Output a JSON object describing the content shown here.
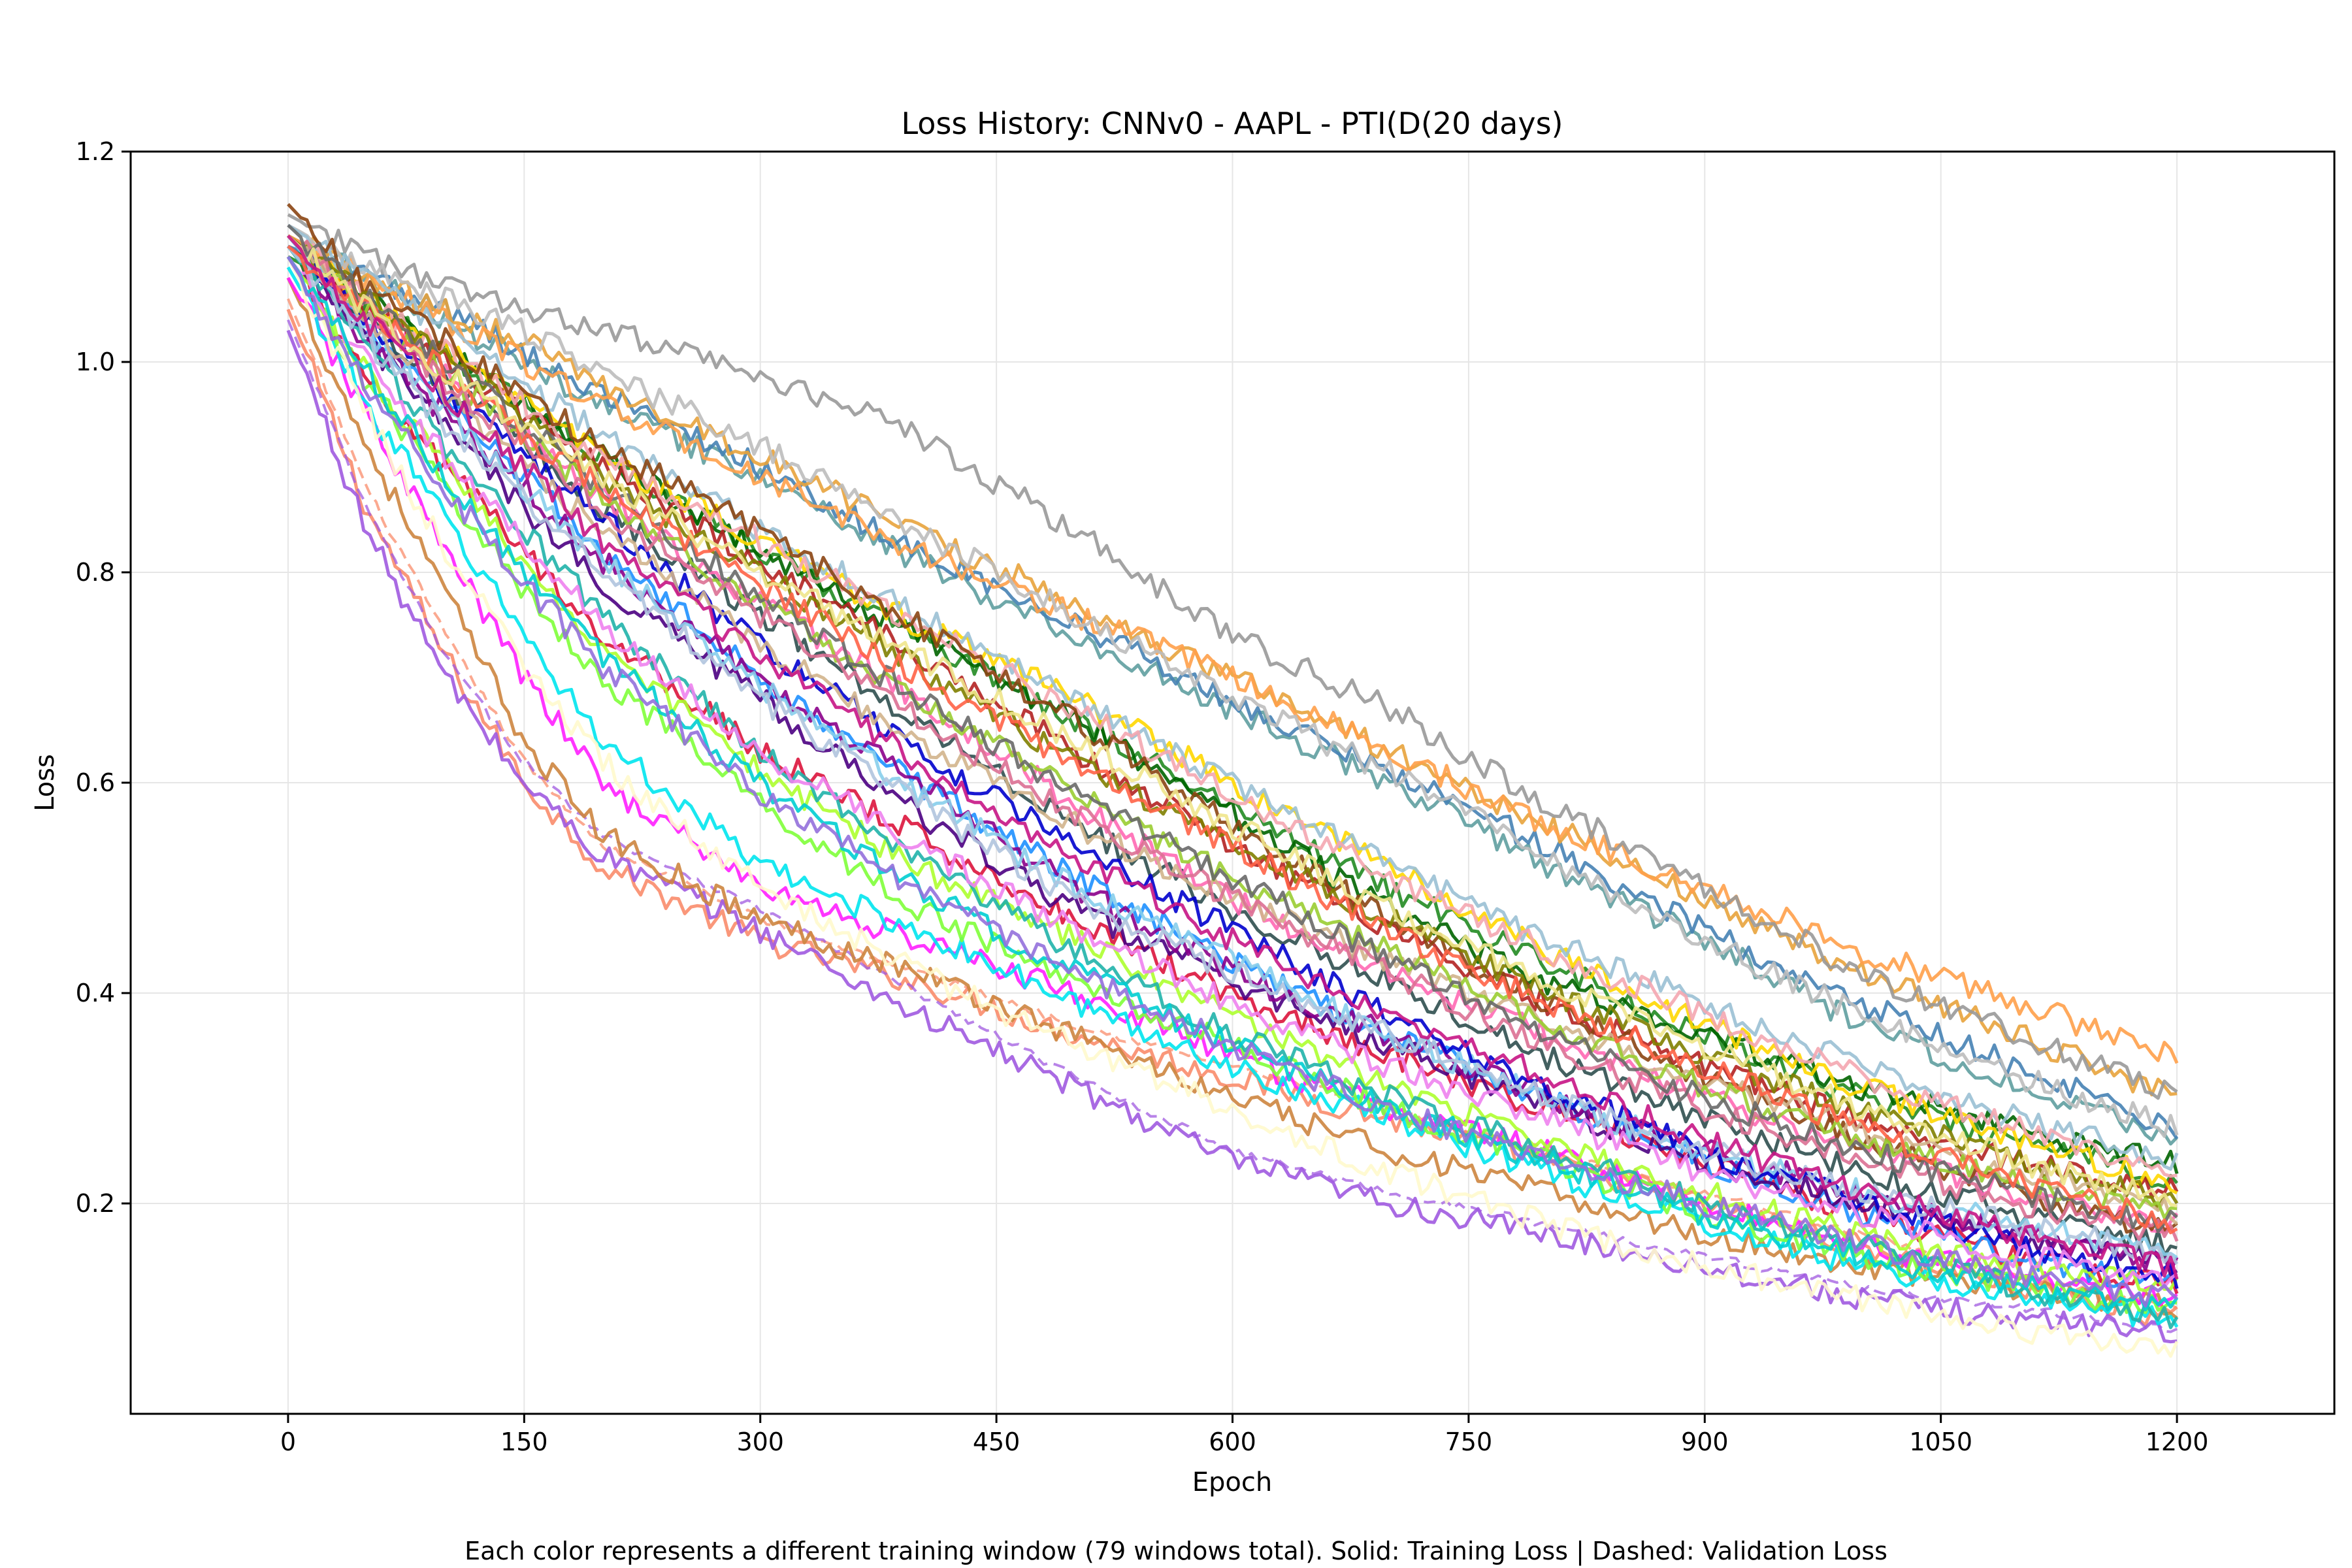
{
  "chart_data": {
    "type": "line",
    "title": "Loss History: CNNv0 - AAPL - PTI(D(20 days)",
    "xlabel": "Epoch",
    "ylabel": "Loss",
    "caption": "Each color represents a different training window (79 windows total). Solid: Training Loss | Dashed: Validation Loss",
    "xlim": [
      -100,
      1300
    ],
    "ylim": [
      0.0,
      1.2
    ],
    "xticks": [
      0,
      150,
      300,
      450,
      600,
      750,
      900,
      1050,
      1200
    ],
    "yticks": [
      0.2,
      0.4,
      0.6,
      0.8,
      1.0,
      1.2
    ],
    "xtick_labels": [
      "0",
      "150",
      "300",
      "450",
      "600",
      "750",
      "900",
      "1050",
      "1200"
    ],
    "ytick_labels": [
      "0.2",
      "0.4",
      "0.6",
      "0.8",
      "1.0",
      "1.2"
    ],
    "grid": true,
    "num_windows": 79,
    "x": [
      0,
      50,
      100,
      150,
      200,
      300,
      400,
      500,
      600,
      700,
      800,
      900,
      1000,
      1100,
      1200
    ],
    "series": [
      {
        "style": "solid",
        "color": "#fa8c6b",
        "values": [
          1.05,
          0.86,
          0.72,
          0.6,
          0.52,
          0.45,
          0.41,
          0.36,
          0.32,
          0.28,
          0.24,
          0.2,
          0.16,
          0.12,
          0.09
        ]
      },
      {
        "style": "dashed",
        "color": "#fa8c6b",
        "values": [
          1.06,
          0.88,
          0.74,
          0.62,
          0.54,
          0.47,
          0.42,
          0.37,
          0.33,
          0.29,
          0.25,
          0.21,
          0.17,
          0.13,
          0.1
        ]
      },
      {
        "style": "solid",
        "color": "#a05ae0",
        "values": [
          1.03,
          0.84,
          0.7,
          0.6,
          0.53,
          0.46,
          0.38,
          0.31,
          0.24,
          0.2,
          0.17,
          0.14,
          0.11,
          0.09,
          0.08
        ]
      },
      {
        "style": "dashed",
        "color": "#a05ae0",
        "values": [
          1.04,
          0.86,
          0.72,
          0.62,
          0.55,
          0.48,
          0.4,
          0.32,
          0.25,
          0.21,
          0.18,
          0.15,
          0.12,
          0.1,
          0.08
        ]
      },
      {
        "style": "solid",
        "color": "#cd853f",
        "values": [
          1.08,
          0.92,
          0.78,
          0.64,
          0.55,
          0.47,
          0.42,
          0.36,
          0.3,
          0.25,
          0.21,
          0.17,
          0.14,
          0.12,
          0.1
        ]
      },
      {
        "style": "solid",
        "color": "#ff1fff",
        "values": [
          1.08,
          0.95,
          0.82,
          0.7,
          0.6,
          0.5,
          0.45,
          0.4,
          0.34,
          0.29,
          0.25,
          0.2,
          0.16,
          0.13,
          0.11
        ]
      },
      {
        "style": "solid",
        "color": "#00e5ee",
        "values": [
          1.09,
          0.96,
          0.85,
          0.74,
          0.64,
          0.52,
          0.46,
          0.39,
          0.33,
          0.28,
          0.23,
          0.18,
          0.14,
          0.11,
          0.09
        ]
      },
      {
        "style": "solid",
        "color": "#7fff3a",
        "values": [
          1.1,
          0.98,
          0.88,
          0.78,
          0.7,
          0.58,
          0.48,
          0.41,
          0.35,
          0.29,
          0.24,
          0.19,
          0.15,
          0.12,
          0.1
        ]
      },
      {
        "style": "solid",
        "color": "#dc143c",
        "values": [
          1.1,
          0.98,
          0.9,
          0.82,
          0.74,
          0.63,
          0.55,
          0.47,
          0.4,
          0.34,
          0.29,
          0.24,
          0.19,
          0.15,
          0.12
        ]
      },
      {
        "style": "solid",
        "color": "#1e90ff",
        "values": [
          1.12,
          1.03,
          0.96,
          0.89,
          0.82,
          0.7,
          0.6,
          0.51,
          0.43,
          0.36,
          0.3,
          0.24,
          0.19,
          0.15,
          0.12
        ]
      },
      {
        "style": "solid",
        "color": "#4b0082",
        "values": [
          1.11,
          1.02,
          0.94,
          0.86,
          0.79,
          0.68,
          0.57,
          0.48,
          0.41,
          0.35,
          0.29,
          0.24,
          0.2,
          0.17,
          0.14
        ]
      },
      {
        "style": "solid",
        "color": "#8b008b",
        "values": [
          1.11,
          1.02,
          0.95,
          0.88,
          0.81,
          0.7,
          0.6,
          0.5,
          0.42,
          0.36,
          0.3,
          0.25,
          0.21,
          0.17,
          0.14
        ]
      },
      {
        "style": "solid",
        "color": "#2f4f4f",
        "values": [
          1.12,
          1.04,
          0.98,
          0.92,
          0.86,
          0.76,
          0.66,
          0.56,
          0.48,
          0.41,
          0.34,
          0.28,
          0.23,
          0.19,
          0.16
        ]
      },
      {
        "style": "solid",
        "color": "#ff69b4",
        "values": [
          1.12,
          1.05,
          0.99,
          0.93,
          0.87,
          0.77,
          0.68,
          0.58,
          0.49,
          0.42,
          0.36,
          0.3,
          0.25,
          0.21,
          0.18
        ]
      },
      {
        "style": "solid",
        "color": "#228b22",
        "values": [
          1.1,
          1.06,
          1.01,
          0.96,
          0.91,
          0.82,
          0.74,
          0.66,
          0.58,
          0.5,
          0.43,
          0.36,
          0.3,
          0.26,
          0.22
        ]
      },
      {
        "style": "solid",
        "color": "#006400",
        "values": [
          1.11,
          1.06,
          1.01,
          0.96,
          0.91,
          0.82,
          0.74,
          0.66,
          0.57,
          0.48,
          0.41,
          0.36,
          0.31,
          0.27,
          0.24
        ]
      },
      {
        "style": "solid",
        "color": "#b22222",
        "values": [
          1.11,
          1.05,
          1.0,
          0.95,
          0.9,
          0.81,
          0.72,
          0.63,
          0.54,
          0.46,
          0.39,
          0.33,
          0.28,
          0.24,
          0.21
        ]
      },
      {
        "style": "solid",
        "color": "#ffd700",
        "values": [
          1.12,
          1.06,
          1.01,
          0.96,
          0.91,
          0.83,
          0.75,
          0.68,
          0.6,
          0.52,
          0.44,
          0.37,
          0.31,
          0.26,
          0.22
        ]
      },
      {
        "style": "solid",
        "color": "#5f9ea0",
        "values": [
          1.12,
          1.08,
          1.04,
          1.0,
          0.96,
          0.89,
          0.81,
          0.74,
          0.67,
          0.6,
          0.52,
          0.45,
          0.37,
          0.31,
          0.26
        ]
      },
      {
        "style": "solid",
        "color": "#4682b4",
        "values": [
          1.11,
          1.08,
          1.05,
          1.01,
          0.97,
          0.9,
          0.82,
          0.75,
          0.68,
          0.61,
          0.54,
          0.46,
          0.39,
          0.33,
          0.27
        ]
      },
      {
        "style": "solid",
        "color": "#e8a33c",
        "values": [
          1.12,
          1.08,
          1.05,
          1.02,
          0.98,
          0.91,
          0.84,
          0.77,
          0.7,
          0.63,
          0.56,
          0.49,
          0.42,
          0.36,
          0.3
        ]
      },
      {
        "style": "solid",
        "color": "#ffa04a",
        "values": [
          1.12,
          1.08,
          1.04,
          1.0,
          0.96,
          0.89,
          0.82,
          0.76,
          0.7,
          0.63,
          0.56,
          0.5,
          0.44,
          0.39,
          0.34
        ]
      },
      {
        "style": "solid",
        "color": "#999999",
        "values": [
          1.14,
          1.1,
          1.07,
          1.05,
          1.03,
          0.99,
          0.93,
          0.84,
          0.74,
          0.67,
          0.58,
          0.5,
          0.42,
          0.36,
          0.3
        ]
      },
      {
        "style": "solid",
        "color": "#bdbdbd",
        "values": [
          1.13,
          1.09,
          1.06,
          1.03,
          0.99,
          0.92,
          0.84,
          0.76,
          0.68,
          0.61,
          0.53,
          0.45,
          0.38,
          0.32,
          0.27
        ]
      },
      {
        "style": "solid",
        "color": "#9ac0d4",
        "values": [
          1.13,
          1.08,
          1.03,
          0.98,
          0.93,
          0.84,
          0.76,
          0.68,
          0.6,
          0.52,
          0.45,
          0.39,
          0.33,
          0.28,
          0.24
        ]
      },
      {
        "style": "solid",
        "color": "#f4a6b0",
        "values": [
          1.12,
          1.06,
          1.01,
          0.96,
          0.91,
          0.83,
          0.75,
          0.67,
          0.59,
          0.51,
          0.44,
          0.38,
          0.32,
          0.27,
          0.23
        ]
      },
      {
        "style": "solid",
        "color": "#adff2f",
        "values": [
          1.1,
          0.99,
          0.9,
          0.81,
          0.73,
          0.61,
          0.52,
          0.45,
          0.38,
          0.31,
          0.26,
          0.21,
          0.17,
          0.14,
          0.12
        ]
      },
      {
        "style": "solid",
        "color": "#87ceeb",
        "values": [
          1.12,
          1.03,
          0.95,
          0.88,
          0.81,
          0.69,
          0.59,
          0.5,
          0.43,
          0.36,
          0.3,
          0.25,
          0.21,
          0.18,
          0.15
        ]
      },
      {
        "style": "solid",
        "color": "#8b4513",
        "values": [
          1.15,
          1.07,
          1.02,
          0.97,
          0.92,
          0.84,
          0.75,
          0.66,
          0.56,
          0.47,
          0.39,
          0.32,
          0.26,
          0.21,
          0.17
        ]
      },
      {
        "style": "solid",
        "color": "#808000",
        "values": [
          1.12,
          1.06,
          1.0,
          0.95,
          0.89,
          0.8,
          0.71,
          0.62,
          0.54,
          0.47,
          0.4,
          0.34,
          0.29,
          0.24,
          0.2
        ]
      },
      {
        "style": "solid",
        "color": "#0000cd",
        "values": [
          1.12,
          1.04,
          0.97,
          0.91,
          0.85,
          0.73,
          0.63,
          0.54,
          0.46,
          0.38,
          0.31,
          0.25,
          0.2,
          0.16,
          0.13
        ]
      },
      {
        "style": "solid",
        "color": "#20b2aa",
        "values": [
          1.11,
          1.01,
          0.92,
          0.84,
          0.76,
          0.63,
          0.53,
          0.44,
          0.36,
          0.3,
          0.25,
          0.2,
          0.16,
          0.12,
          0.09
        ]
      },
      {
        "style": "solid",
        "color": "#d2b48c",
        "values": [
          1.12,
          1.04,
          0.97,
          0.9,
          0.84,
          0.73,
          0.64,
          0.56,
          0.49,
          0.43,
          0.37,
          0.32,
          0.27,
          0.23,
          0.19
        ]
      },
      {
        "style": "solid",
        "color": "#ee82ee",
        "values": [
          1.1,
          1.0,
          0.91,
          0.83,
          0.75,
          0.63,
          0.54,
          0.46,
          0.39,
          0.33,
          0.28,
          0.23,
          0.19,
          0.15,
          0.13
        ]
      },
      {
        "style": "solid",
        "color": "#b0c4de",
        "values": [
          1.11,
          1.02,
          0.94,
          0.87,
          0.8,
          0.68,
          0.58,
          0.49,
          0.42,
          0.36,
          0.3,
          0.25,
          0.21,
          0.18,
          0.15
        ]
      },
      {
        "style": "solid",
        "color": "#9acd32",
        "values": [
          1.12,
          1.05,
          0.99,
          0.93,
          0.87,
          0.77,
          0.68,
          0.59,
          0.51,
          0.44,
          0.37,
          0.31,
          0.26,
          0.22,
          0.19
        ]
      },
      {
        "style": "solid",
        "color": "#db7093",
        "values": [
          1.12,
          1.05,
          0.98,
          0.92,
          0.86,
          0.76,
          0.66,
          0.57,
          0.49,
          0.42,
          0.35,
          0.29,
          0.24,
          0.2,
          0.17
        ]
      },
      {
        "style": "solid",
        "color": "#696969",
        "values": [
          1.13,
          1.06,
          1.0,
          0.94,
          0.88,
          0.78,
          0.68,
          0.59,
          0.51,
          0.43,
          0.36,
          0.3,
          0.25,
          0.21,
          0.18
        ]
      },
      {
        "style": "solid",
        "color": "#ff6347",
        "values": [
          1.11,
          1.05,
          0.99,
          0.93,
          0.88,
          0.79,
          0.7,
          0.62,
          0.54,
          0.46,
          0.39,
          0.33,
          0.27,
          0.22,
          0.18
        ]
      },
      {
        "style": "solid",
        "color": "#fffacd",
        "values": [
          1.1,
          0.95,
          0.82,
          0.71,
          0.62,
          0.5,
          0.42,
          0.35,
          0.29,
          0.23,
          0.18,
          0.14,
          0.11,
          0.08,
          0.06
        ]
      },
      {
        "style": "solid",
        "color": "#f0e68c",
        "values": [
          1.12,
          1.05,
          0.99,
          0.94,
          0.89,
          0.8,
          0.72,
          0.64,
          0.56,
          0.48,
          0.41,
          0.35,
          0.29,
          0.24,
          0.2
        ]
      },
      {
        "style": "solid",
        "color": "#00ced1",
        "values": [
          1.1,
          0.99,
          0.89,
          0.8,
          0.72,
          0.6,
          0.5,
          0.42,
          0.35,
          0.29,
          0.24,
          0.19,
          0.15,
          0.12,
          0.1
        ]
      },
      {
        "style": "solid",
        "color": "#9370db",
        "values": [
          1.1,
          0.98,
          0.88,
          0.79,
          0.71,
          0.59,
          0.5,
          0.42,
          0.35,
          0.29,
          0.24,
          0.2,
          0.16,
          0.13,
          0.11
        ]
      },
      {
        "style": "solid",
        "color": "#c71585",
        "values": [
          1.12,
          1.04,
          0.97,
          0.9,
          0.83,
          0.72,
          0.62,
          0.53,
          0.45,
          0.38,
          0.32,
          0.26,
          0.21,
          0.17,
          0.14
        ]
      }
    ]
  }
}
